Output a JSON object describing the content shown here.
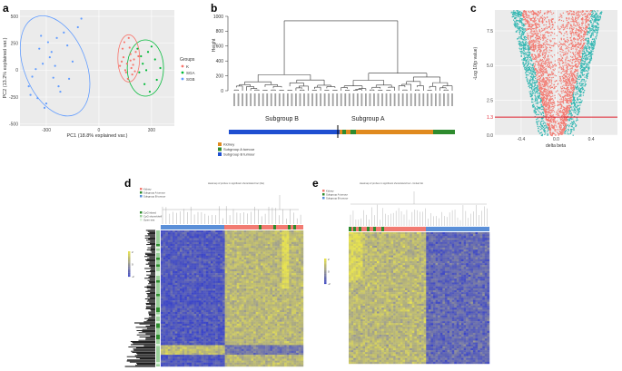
{
  "panels": {
    "a": {
      "letter": "a",
      "xlabel": "PC1 (18.8% explained var.)",
      "ylabel": "PC2 (13.2% explained var.)",
      "xticks": [
        "-300",
        "0",
        "300"
      ],
      "yticks": [
        "500",
        "250",
        "0",
        "-250",
        "-500"
      ],
      "legend_title": "Groups",
      "legend": [
        {
          "name": "K",
          "color": "#f8766d"
        },
        {
          "name": "SGA",
          "color": "#00ba38"
        },
        {
          "name": "SGB",
          "color": "#619cff"
        }
      ]
    },
    "b": {
      "letter": "b",
      "ylabel": "Height",
      "yticks": [
        "1000",
        "800",
        "600",
        "400",
        "200",
        "0"
      ],
      "subgroup_b": "Subgroup B",
      "subgroup_a": "Subgroup A",
      "legend": [
        {
          "name": "Kidney",
          "color": "#e08a1e"
        },
        {
          "name": "Subgroup A tumour",
          "color": "#2e8b2e"
        },
        {
          "name": "Subgroup B tumour",
          "color": "#1f4fd1"
        }
      ]
    },
    "c": {
      "letter": "c",
      "ylabel": "-Log 10(p value)",
      "xlabel": "delta beta",
      "xticks": [
        "-0.4",
        "0.0",
        "0.4"
      ],
      "yticks": [
        "7.5",
        "5.0",
        "2.5",
        "1.3",
        "0.0"
      ],
      "colors": {
        "sig": "#35b7b2",
        "nonsig": "#f27b72",
        "threshold": "#e0202c"
      }
    },
    "d": {
      "letter": "d",
      "title": "Heatmap of probes in significant shore/island loci (bis)",
      "legend_groups": [
        "Kidney",
        "Subgroup A tumour",
        "Subgroup B tumour"
      ],
      "legend_cpg": [
        "CpG island",
        "CpG shore/shelf",
        "Open sea"
      ],
      "scale": [
        "2",
        "0",
        "-2"
      ]
    },
    "e": {
      "letter": "e",
      "title": "Heatmap of probes in significant shore/island loci - limited list",
      "legend_groups": [
        "Kidney",
        "Subgroup A tumour",
        "Subgroup B tumour"
      ],
      "scale": [
        "2",
        "0",
        "-2"
      ]
    }
  },
  "chart_data": [
    {
      "type": "scatter",
      "title": "",
      "xlabel": "PC1 (18.8% explained var.)",
      "ylabel": "PC2 (13.2% explained var.)",
      "xlim": [
        -450,
        430
      ],
      "ylim": [
        -520,
        560
      ],
      "series": [
        {
          "name": "K",
          "color": "#f8766d",
          "x": [
            140,
            160,
            180,
            120,
            200,
            150,
            175,
            190,
            210,
            130,
            165,
            185,
            145,
            205,
            170,
            195,
            155,
            225,
            135,
            180
          ],
          "y": [
            120,
            60,
            150,
            40,
            100,
            0,
            210,
            -40,
            170,
            80,
            -80,
            20,
            260,
            -10,
            300,
            50,
            -20,
            130,
            200,
            90
          ]
        },
        {
          "name": "SGA",
          "color": "#00ba38",
          "x": [
            320,
            280,
            250,
            260,
            350,
            230,
            300,
            270,
            240,
            330,
            290,
            220
          ],
          "y": [
            100,
            170,
            60,
            -130,
            20,
            -20,
            220,
            0,
            130,
            -90,
            -200,
            200
          ]
        },
        {
          "name": "SGB",
          "color": "#619cff",
          "x": [
            -400,
            -350,
            -300,
            -380,
            -250,
            -180,
            -120,
            -330,
            -270,
            -220,
            -150,
            -360,
            -290,
            -230,
            -310,
            -200,
            -260,
            -340,
            -100,
            -170,
            -280,
            -390,
            -240,
            -320
          ],
          "y": [
            -150,
            -260,
            -310,
            -60,
            40,
            230,
            400,
            320,
            170,
            -200,
            80,
            10,
            260,
            -150,
            -350,
            350,
            -70,
            200,
            480,
            -80,
            120,
            -230,
            300,
            60
          ]
        }
      ]
    },
    {
      "type": "scatter",
      "title": "",
      "xlabel": "delta beta",
      "ylabel": "-Log 10(p value)",
      "xlim": [
        -0.7,
        0.7
      ],
      "ylim": [
        0,
        9
      ],
      "threshold_y": 1.3,
      "series": [
        {
          "name": "significant",
          "color": "#35b7b2",
          "density": "dense"
        },
        {
          "name": "not significant",
          "color": "#f27b72",
          "density": "dense"
        }
      ]
    }
  ]
}
